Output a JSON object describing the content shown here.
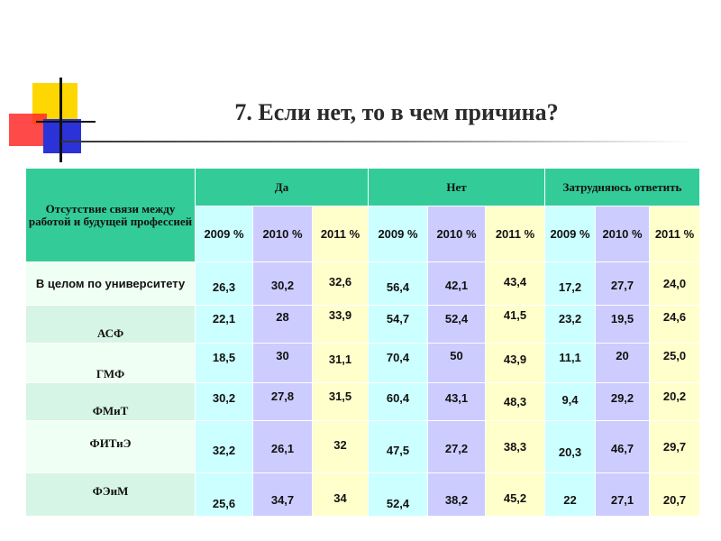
{
  "title": "7. Если нет, то в чем причина?",
  "table": {
    "corner_label": "Отсутствие связи между работой и будущей профессией",
    "groups": [
      "Да",
      "Нет",
      "Затрудняюсь ответить"
    ],
    "years": [
      "2009 %",
      "2010 %",
      "2011 %",
      "2009 %",
      "2010 %",
      "2011 %",
      "2009 %",
      "2010 %",
      "2011 %"
    ],
    "rows": [
      {
        "label": "В целом по университету",
        "values": [
          "26,3",
          "30,2",
          "32,6",
          "56,4",
          "42,1",
          "43,4",
          "17,2",
          "27,7",
          "24,0"
        ]
      },
      {
        "label": "АСФ",
        "values": [
          "22,1",
          "28",
          "33,9",
          "54,7",
          "52,4",
          "41,5",
          "23,2",
          "19,5",
          "24,6"
        ]
      },
      {
        "label": "ГМФ",
        "values": [
          "18,5",
          "30",
          "31,1",
          "70,4",
          "50",
          "43,9",
          "11,1",
          "20",
          "25,0"
        ]
      },
      {
        "label": "ФМиТ",
        "values": [
          "30,2",
          "27,8",
          "31,5",
          "60,4",
          "43,1",
          "48,3",
          "9,4",
          "29,2",
          "20,2"
        ]
      },
      {
        "label": "ФИТиЭ",
        "values": [
          "32,2",
          "26,1",
          "32",
          "47,5",
          "27,2",
          "38,3",
          "20,3",
          "46,7",
          "29,7"
        ]
      },
      {
        "label": "ФЭиМ",
        "values": [
          "25,6",
          "34,7",
          "34",
          "52,4",
          "38,2",
          "45,2",
          "22",
          "27,1",
          "20,7"
        ]
      }
    ]
  }
}
